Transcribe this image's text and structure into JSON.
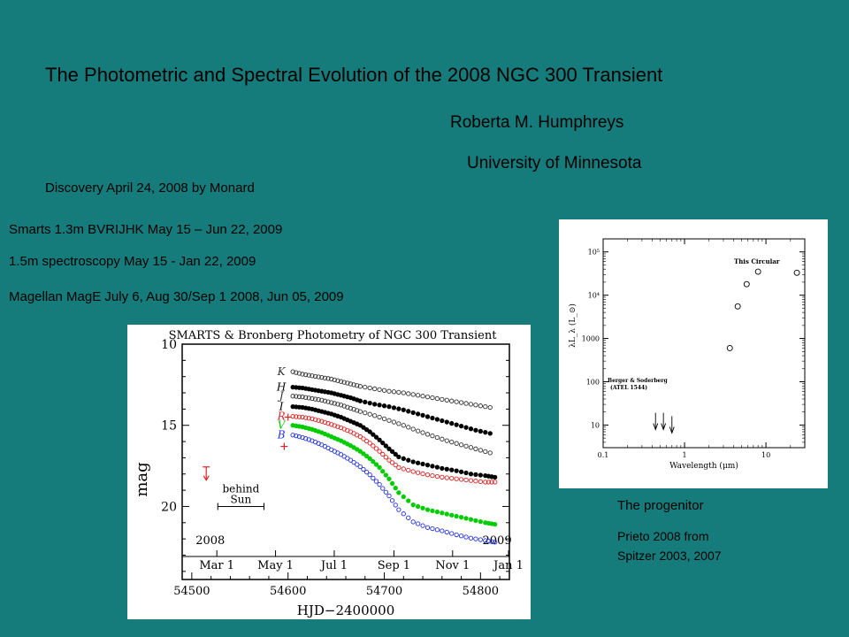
{
  "slide": {
    "title": "The Photometric and Spectral Evolution of the 2008 NGC 300 Transient",
    "author": "Roberta M. Humphreys",
    "affiliation": "University of Minnesota",
    "discovery": "Discovery April 24, 2008 by Monard",
    "observations": [
      "Smarts 1.3m BVRIJHK May 15 – Jun 22, 2009",
      "1.5m spectroscopy May 15  - Jan 22, 2009",
      "Magellan MagE  July 6, Aug 30/Sep 1 2008, Jun 05, 2009"
    ],
    "progenitor_caption": "The progenitor",
    "progenitor_source_1": "Prieto 2008 from",
    "progenitor_source_2": "Spitzer 2003, 2007"
  },
  "chart_data": [
    {
      "type": "scatter",
      "title": "SMARTS & Bronberg Photometry of NGC 300 Transient",
      "xlabel": "HJD−2400000",
      "ylabel": "mag",
      "xlim": [
        54490,
        54830
      ],
      "ylim": [
        24.5,
        10
      ],
      "y_inverted": true,
      "x_ticks": [
        54500,
        54600,
        54700,
        54800
      ],
      "y_ticks": [
        10,
        15,
        20
      ],
      "date_ticks": [
        {
          "label": "Mar 1",
          "x": 54526
        },
        {
          "label": "May 1",
          "x": 54587
        },
        {
          "label": "Jul 1",
          "x": 54648
        },
        {
          "label": "Sep 1",
          "x": 54710
        },
        {
          "label": "Nov 1",
          "x": 54771
        },
        {
          "label": "Jan 1",
          "x": 54832
        }
      ],
      "year_labels": [
        {
          "label": "2008",
          "x": 54510
        },
        {
          "label": "2009",
          "x": 54808
        }
      ],
      "annotation": {
        "text_1": "behind",
        "text_2": "Sun",
        "x_start": 54527,
        "x_end": 54575,
        "y": 20.0
      },
      "upper_limit": {
        "x": 54515,
        "y": 18.0
      },
      "crosses": [
        {
          "x": 54600,
          "y": 14.5
        },
        {
          "x": 54596,
          "y": 16.3
        }
      ],
      "series": [
        {
          "name": "K",
          "color": "#333333",
          "marker": "open",
          "x": [
            54605,
            54615,
            54625,
            54635,
            54645,
            54655,
            54665,
            54675,
            54690,
            54705,
            54720,
            54735,
            54750,
            54765,
            54780,
            54795,
            54810
          ],
          "y": [
            11.7,
            11.85,
            11.95,
            12.05,
            12.15,
            12.3,
            12.45,
            12.6,
            12.75,
            12.9,
            13.0,
            13.15,
            13.3,
            13.45,
            13.6,
            13.75,
            13.9
          ]
        },
        {
          "name": "H",
          "color": "#000000",
          "marker": "filled",
          "x": [
            54605,
            54615,
            54625,
            54635,
            54645,
            54655,
            54665,
            54675,
            54690,
            54705,
            54720,
            54735,
            54750,
            54765,
            54780,
            54795,
            54810
          ],
          "y": [
            12.65,
            12.7,
            12.8,
            12.9,
            13.0,
            13.15,
            13.3,
            13.5,
            13.7,
            13.85,
            14.05,
            14.3,
            14.55,
            14.8,
            15.05,
            15.3,
            15.5
          ]
        },
        {
          "name": "J",
          "color": "#333333",
          "marker": "open",
          "x": [
            54605,
            54615,
            54625,
            54635,
            54645,
            54655,
            54665,
            54675,
            54690,
            54705,
            54720,
            54735,
            54750,
            54765,
            54780,
            54795,
            54810
          ],
          "y": [
            13.2,
            13.25,
            13.35,
            13.45,
            13.6,
            13.75,
            13.95,
            14.15,
            14.4,
            14.7,
            15.0,
            15.35,
            15.65,
            15.95,
            16.2,
            16.45,
            16.7
          ]
        },
        {
          "name": "I",
          "color": "#000000",
          "marker": "filled",
          "x": [
            54605,
            54615,
            54625,
            54635,
            54645,
            54655,
            54665,
            54675,
            54685,
            54695,
            54705,
            54715,
            54730,
            54745,
            54760,
            54775,
            54790,
            54805,
            54815
          ],
          "y": [
            13.85,
            13.9,
            14.0,
            14.15,
            14.3,
            14.5,
            14.75,
            15.0,
            15.4,
            15.9,
            16.45,
            16.95,
            17.25,
            17.45,
            17.65,
            17.8,
            18.0,
            18.1,
            18.2
          ]
        },
        {
          "name": "R",
          "color": "#dd2222",
          "marker": "open",
          "x": [
            54605,
            54615,
            54625,
            54635,
            54645,
            54655,
            54665,
            54675,
            54685,
            54695,
            54705,
            54715,
            54730,
            54745,
            54760,
            54775,
            54790,
            54805,
            54815
          ],
          "y": [
            14.45,
            14.5,
            14.6,
            14.75,
            14.95,
            15.15,
            15.4,
            15.7,
            16.1,
            16.6,
            17.15,
            17.6,
            17.85,
            18.05,
            18.2,
            18.3,
            18.4,
            18.5,
            18.5
          ]
        },
        {
          "name": "V",
          "color": "#00cc00",
          "marker": "filled",
          "x": [
            54605,
            54615,
            54625,
            54635,
            54645,
            54655,
            54665,
            54675,
            54685,
            54695,
            54705,
            54715,
            54730,
            54745,
            54760,
            54775,
            54790,
            54805,
            54815
          ],
          "y": [
            15.0,
            15.1,
            15.25,
            15.45,
            15.7,
            15.95,
            16.25,
            16.6,
            17.05,
            17.6,
            18.3,
            19.15,
            19.9,
            20.2,
            20.4,
            20.6,
            20.8,
            21.0,
            21.1
          ]
        },
        {
          "name": "B",
          "color": "#2233dd",
          "marker": "open",
          "x": [
            54605,
            54615,
            54625,
            54635,
            54645,
            54655,
            54665,
            54675,
            54685,
            54695,
            54705,
            54715,
            54730,
            54745,
            54760,
            54775,
            54790,
            54805,
            54815
          ],
          "y": [
            15.6,
            15.75,
            15.95,
            16.2,
            16.5,
            16.8,
            17.15,
            17.55,
            18.05,
            18.65,
            19.35,
            20.2,
            20.95,
            21.3,
            21.5,
            21.75,
            21.95,
            22.1,
            22.2
          ]
        }
      ]
    },
    {
      "type": "scatter",
      "xlabel": "Wavelength (μm)",
      "ylabel": "λL_λ (L_⊙)",
      "x_scale": "log",
      "y_scale": "log",
      "xlim": [
        0.1,
        30
      ],
      "ylim": [
        3,
        200000
      ],
      "x_ticks": [
        0.1,
        1,
        10
      ],
      "y_ticks": [
        10,
        100,
        1000,
        10000,
        100000
      ],
      "y_tick_labels": [
        "10",
        "100",
        "1000",
        "10⁴",
        "10⁵"
      ],
      "legend_label": "This Circular",
      "annotation_1": "Berger & Soderberg",
      "annotation_2": "(ATEL 1544)",
      "points": [
        {
          "x": 3.6,
          "y": 600
        },
        {
          "x": 4.5,
          "y": 5500
        },
        {
          "x": 5.8,
          "y": 18000
        },
        {
          "x": 8.0,
          "y": 35000
        },
        {
          "x": 24,
          "y": 33000
        }
      ],
      "upper_limits": [
        {
          "x": 0.44,
          "y": 12
        },
        {
          "x": 0.55,
          "y": 12
        },
        {
          "x": 0.7,
          "y": 10
        }
      ]
    }
  ]
}
